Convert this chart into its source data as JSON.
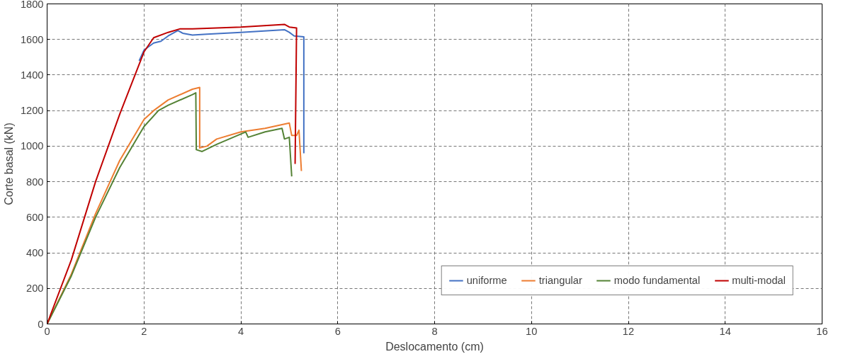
{
  "chart_data": {
    "type": "line",
    "xlabel": "Deslocamento (cm)",
    "ylabel": "Corte basal (kN)",
    "xlim": [
      0,
      16
    ],
    "ylim": [
      0,
      1800
    ],
    "xticks": [
      0,
      2,
      4,
      6,
      8,
      10,
      12,
      14,
      16
    ],
    "yticks": [
      0,
      200,
      400,
      600,
      800,
      1000,
      1200,
      1400,
      1600,
      1800
    ],
    "grid": true,
    "legend": "bottom right",
    "line_style": "solid",
    "marker": "none",
    "series": [
      {
        "name": "uniforme",
        "color": "#4472c4",
        "x": [
          1.9,
          2.0,
          2.2,
          2.35,
          2.5,
          2.7,
          2.8,
          3.0,
          3.3,
          4.0,
          4.9,
          5.0,
          5.1,
          5.3,
          5.3
        ],
        "values": [
          1480,
          1540,
          1580,
          1590,
          1620,
          1650,
          1635,
          1625,
          1630,
          1640,
          1655,
          1640,
          1620,
          1615,
          960
        ]
      },
      {
        "name": "triangular",
        "color": "#ed7d31",
        "x": [
          0,
          0.5,
          1,
          1.5,
          2,
          2.2,
          2.5,
          3,
          3.15,
          3.15,
          3.3,
          3.5,
          4,
          4.5,
          5,
          5.05,
          5.15,
          5.2,
          5.25
        ],
        "values": [
          0,
          280,
          620,
          920,
          1150,
          1200,
          1260,
          1320,
          1330,
          990,
          1000,
          1040,
          1080,
          1100,
          1130,
          1060,
          1060,
          1090,
          860
        ]
      },
      {
        "name": "modo fundamental",
        "color": "#548235",
        "x": [
          0,
          0.5,
          1,
          1.5,
          2,
          2.3,
          2.5,
          3,
          3.07,
          3.08,
          3.2,
          3.5,
          4.1,
          4.15,
          4.5,
          4.85,
          4.9,
          5.0,
          5.05
        ],
        "values": [
          0,
          270,
          600,
          880,
          1110,
          1200,
          1230,
          1290,
          1300,
          980,
          970,
          1010,
          1080,
          1050,
          1080,
          1100,
          1040,
          1050,
          830
        ]
      },
      {
        "name": "multi-modal",
        "color": "#c00000",
        "x": [
          0,
          0.5,
          1,
          1.5,
          2,
          2.2,
          2.5,
          2.75,
          3,
          4,
          4.9,
          5.0,
          5.15,
          5.12
        ],
        "values": [
          0,
          360,
          800,
          1180,
          1530,
          1610,
          1640,
          1660,
          1660,
          1670,
          1685,
          1670,
          1665,
          900
        ]
      }
    ]
  }
}
